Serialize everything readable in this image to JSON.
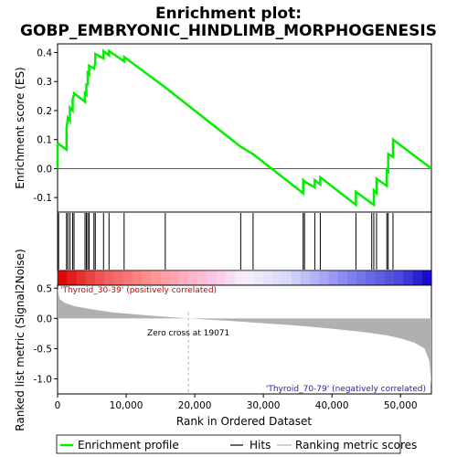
{
  "title_line1": "Enrichment plot:",
  "title_line2": "GOBP_EMBRYONIC_HINDLIMB_MORPHOGENESIS",
  "colors": {
    "enrichment": "#00ee00",
    "hits": "#000000",
    "ranking": "#b0b0b0",
    "pos_label": "#cc0000",
    "neg_label": "#2222aa"
  },
  "chart_data": {
    "type": "line",
    "x_max": 54500,
    "xlabel": "Rank in Ordered Dataset",
    "xticks": [
      0,
      10000,
      20000,
      30000,
      40000,
      50000
    ],
    "xtick_labels": [
      "0",
      "10,000",
      "20,000",
      "30,000",
      "40,000",
      "50,000"
    ],
    "enrichment": {
      "ylabel": "Enrichment score (ES)",
      "ylim": [
        -0.15,
        0.43
      ],
      "yticks": [
        -0.1,
        0.0,
        0.1,
        0.2,
        0.3,
        0.4
      ],
      "ytick_labels": [
        "-0.1",
        "0.0",
        "0.1",
        "0.2",
        "0.3",
        "0.4"
      ],
      "hits": [
        0,
        150,
        1300,
        1500,
        1800,
        2200,
        2400,
        4000,
        4200,
        4400,
        4600,
        5300,
        5500,
        6700,
        7500,
        9700,
        15700,
        26700,
        28500,
        35800,
        36000,
        37500,
        38300,
        43500,
        45800,
        46100,
        46500,
        48000,
        48200,
        48900
      ],
      "x": [
        0,
        0,
        150,
        1300,
        1300,
        1500,
        1800,
        1800,
        2200,
        2200,
        2400,
        2400,
        4000,
        4000,
        4200,
        4200,
        4400,
        4400,
        4600,
        4600,
        5300,
        5500,
        5500,
        6700,
        6700,
        7500,
        7500,
        9700,
        9700,
        15700,
        26700,
        28500,
        35800,
        35800,
        36000,
        37500,
        37500,
        38300,
        38300,
        43500,
        43500,
        45800,
        46100,
        46100,
        46500,
        46500,
        48000,
        48000,
        48200,
        48200,
        48900,
        48900,
        54500
      ],
      "y": [
        0.0,
        0.08,
        0.085,
        0.065,
        0.14,
        0.175,
        0.165,
        0.21,
        0.2,
        0.24,
        0.255,
        0.26,
        0.23,
        0.26,
        0.255,
        0.29,
        0.29,
        0.33,
        0.325,
        0.355,
        0.345,
        0.365,
        0.395,
        0.38,
        0.405,
        0.39,
        0.405,
        0.37,
        0.385,
        0.28,
        0.075,
        0.05,
        -0.085,
        -0.04,
        -0.045,
        -0.065,
        -0.04,
        -0.055,
        -0.03,
        -0.125,
        -0.08,
        -0.12,
        -0.125,
        -0.075,
        -0.085,
        -0.035,
        -0.06,
        -0.005,
        -0.01,
        0.05,
        0.04,
        0.1,
        0.0
      ]
    },
    "ranking": {
      "ylabel": "Ranked list metric (Signal2Noise)",
      "ylim": [
        -1.25,
        0.55
      ],
      "yticks": [
        0.5,
        0.0,
        -0.5,
        -1.0
      ],
      "ytick_labels": [
        "0.5",
        "0.0",
        "-0.5",
        "-1.0"
      ],
      "zero_cross": 19071,
      "zero_cross_label": "Zero cross at 19071",
      "pos_label": "'Thyroid_30-39' (positively correlated)",
      "neg_label": "'Thyroid_70-79' (negatively correlated)",
      "x": [
        0,
        300,
        1000,
        2500,
        5000,
        8000,
        12000,
        16000,
        19071,
        19071,
        25000,
        30000,
        35000,
        40000,
        45000,
        48000,
        50000,
        52000,
        53500,
        54200,
        54500
      ],
      "y": [
        0.5,
        0.32,
        0.26,
        0.2,
        0.15,
        0.1,
        0.06,
        0.025,
        0.0,
        0.0,
        -0.04,
        -0.08,
        -0.12,
        -0.17,
        -0.23,
        -0.28,
        -0.33,
        -0.4,
        -0.5,
        -0.7,
        -1.1
      ]
    },
    "legend": {
      "items": [
        "Enrichment profile",
        "Hits",
        "Ranking metric scores"
      ],
      "placement": "bottom"
    }
  }
}
